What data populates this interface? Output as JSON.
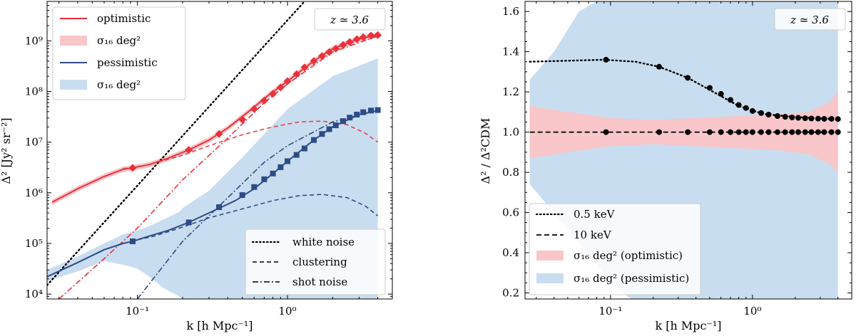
{
  "chart_data": [
    {
      "type": "line",
      "panel": "left",
      "xscale": "log",
      "yscale": "log",
      "xlabel": "k [h Mpc⁻¹]",
      "ylabel": "Δ² [Jy² sr⁻²]",
      "xlim": [
        0.025,
        5.0
      ],
      "ylim": [
        8000,
        6000000000
      ],
      "x_ticks": [
        {
          "v": 0.1,
          "label": "10⁻¹"
        },
        {
          "v": 1.0,
          "label": "10⁰"
        }
      ],
      "y_ticks": [
        {
          "v": 10000,
          "label": "10⁴"
        },
        {
          "v": 100000,
          "label": "10⁵"
        },
        {
          "v": 1000000,
          "label": "10⁶"
        },
        {
          "v": 10000000,
          "label": "10⁷"
        },
        {
          "v": 100000000,
          "label": "10⁸"
        },
        {
          "v": 1000000000,
          "label": "10⁹"
        }
      ],
      "annotation": "z ≃ 3.6",
      "legend_top_left": [
        {
          "label": "optimistic",
          "kind": "line",
          "color": "#e8323c"
        },
        {
          "label": "σ₁₆ deg²",
          "kind": "band",
          "color": "#f9c6c9"
        },
        {
          "label": "pessimistic",
          "kind": "line",
          "color": "#2c4c86"
        },
        {
          "label": "σ₁₆ deg²",
          "kind": "band",
          "color": "#c9ddf0"
        }
      ],
      "legend_bottom_right": [
        {
          "label": "white noise",
          "style": "dotted"
        },
        {
          "label": "clustering",
          "style": "dashed"
        },
        {
          "label": "shot noise",
          "style": "dashdot"
        }
      ],
      "colors": {
        "optimistic": "#e8323c",
        "pessimistic": "#2c4c86",
        "optimistic_band": "#f9c6c9",
        "pessimistic_band": "#c9ddf0",
        "white_noise": "#000000"
      },
      "series": [
        {
          "name": "white noise",
          "style": "dotted",
          "x": [
            0.025,
            1.3
          ],
          "y": [
            15000,
            6000000000
          ]
        },
        {
          "name": "optimistic",
          "style": "solid",
          "marker": "diamond",
          "x": [
            0.027,
            0.04,
            0.06,
            0.08,
            0.093,
            0.12,
            0.16,
            0.22,
            0.3,
            0.4,
            0.55,
            0.75,
            1.0,
            1.5,
            2.0,
            3.0,
            4.0
          ],
          "y": [
            650000,
            1200000,
            2100000,
            2900000,
            3100000,
            3600000,
            4800000,
            7000000,
            11000000,
            19000000,
            40000000,
            85000000,
            160000000,
            400000000,
            700000000,
            1100000000,
            1300000000
          ],
          "marker_x": [
            0.093,
            0.22,
            0.35,
            0.5,
            0.6,
            0.7,
            0.8,
            0.9,
            1.0,
            1.15,
            1.3,
            1.5,
            1.7,
            1.9,
            2.1,
            2.35,
            2.6,
            2.9,
            3.2,
            3.6,
            4.0
          ],
          "marker_y": [
            3100000,
            7000000,
            14500000,
            28000000,
            45000000,
            66000000,
            90000000,
            120000000,
            160000000,
            220000000,
            300000000,
            400000000,
            500000000,
            600000000,
            700000000,
            830000000,
            950000000,
            1080000000,
            1180000000,
            1270000000,
            1300000000
          ]
        },
        {
          "name": "optimistic clustering",
          "style": "dashed",
          "x": [
            0.08,
            0.12,
            0.2,
            0.3,
            0.5,
            0.8,
            1.2,
            1.7,
            2.5,
            3.3,
            4.0
          ],
          "y": [
            3000000,
            3600000,
            5500000,
            8500000,
            14000000,
            20000000,
            25000000,
            26000000,
            22000000,
            15000000,
            10000000
          ]
        },
        {
          "name": "optimistic shot noise",
          "style": "dashdot",
          "x": [
            0.03,
            0.06,
            0.1,
            0.2,
            0.4,
            0.7,
            1.0,
            2.0,
            4.0
          ],
          "y": [
            8000,
            50000,
            200000,
            1800000,
            12000000,
            60000000,
            140000000,
            600000000,
            1250000000
          ]
        },
        {
          "name": "pessimistic",
          "style": "solid",
          "marker": "square",
          "x": [
            0.025,
            0.04,
            0.06,
            0.08,
            0.093,
            0.12,
            0.16,
            0.22,
            0.3,
            0.45,
            0.6,
            0.8,
            1.0,
            1.5,
            2.0,
            3.0,
            4.0
          ],
          "y": [
            22000,
            42000,
            75000,
            100000,
            110000,
            140000,
            180000,
            260000,
            400000,
            700000,
            1200000,
            2400000,
            4200000,
            11000000,
            20000000,
            35000000,
            42000000
          ],
          "marker_x": [
            0.093,
            0.22,
            0.35,
            0.5,
            0.6,
            0.7,
            0.8,
            0.9,
            1.0,
            1.15,
            1.3,
            1.5,
            1.7,
            1.9,
            2.1,
            2.35,
            2.6,
            2.9,
            3.2,
            3.6,
            4.0
          ],
          "marker_y": [
            110000,
            260000,
            520000,
            900000,
            1300000,
            1850000,
            2400000,
            3200000,
            4200000,
            5600000,
            7500000,
            11000000,
            14500000,
            18000000,
            21500000,
            26000000,
            30500000,
            35000000,
            39000000,
            42000000,
            43000000
          ]
        },
        {
          "name": "pessimistic clustering",
          "style": "dashed",
          "x": [
            0.09,
            0.13,
            0.2,
            0.3,
            0.5,
            0.8,
            1.2,
            1.7,
            2.5,
            3.3,
            4.0
          ],
          "y": [
            110000,
            140000,
            210000,
            320000,
            480000,
            700000,
            880000,
            930000,
            800000,
            550000,
            350000
          ]
        },
        {
          "name": "pessimistic shot noise",
          "style": "dashdot",
          "x": [
            0.1,
            0.2,
            0.4,
            0.7,
            1.0,
            2.0,
            4.0
          ],
          "y": [
            8000,
            110000,
            800000,
            4000000,
            8500000,
            25000000,
            42000000
          ]
        }
      ],
      "bands": [
        {
          "name": "optimistic σ",
          "lower_factor": 0.88,
          "upper_factor": 1.13
        },
        {
          "name": "pessimistic σ",
          "x": [
            0.025,
            0.04,
            0.06,
            0.08,
            0.1,
            0.12,
            0.15,
            0.19,
            0.2,
            0.3,
            0.5,
            1.0,
            2.0,
            4.0
          ],
          "upper": [
            30000,
            55000,
            100000,
            150000,
            180000,
            220000,
            300000,
            420000,
            500000,
            1100000,
            5000000,
            45000000,
            200000000,
            450000000
          ],
          "lower": [
            18000,
            28000,
            45000,
            38000,
            32000,
            22000,
            13000,
            9000,
            8000,
            8000,
            8000,
            8000,
            8000,
            8000
          ]
        }
      ]
    },
    {
      "type": "line",
      "panel": "right",
      "xscale": "log",
      "xlabel": "k [h Mpc⁻¹]",
      "ylabel": "Δ² / Δ²CDM",
      "xlim": [
        0.025,
        5.0
      ],
      "ylim": [
        0.17,
        1.65
      ],
      "x_ticks": [
        {
          "v": 0.1,
          "label": "10⁻¹"
        },
        {
          "v": 1.0,
          "label": "10⁰"
        }
      ],
      "y_ticks": [
        {
          "v": 0.2,
          "label": "0.2"
        },
        {
          "v": 0.4,
          "label": "0.4"
        },
        {
          "v": 0.6,
          "label": "0.6"
        },
        {
          "v": 0.8,
          "label": "0.8"
        },
        {
          "v": 1.0,
          "label": "1.0"
        },
        {
          "v": 1.2,
          "label": "1.2"
        },
        {
          "v": 1.4,
          "label": "1.4"
        },
        {
          "v": 1.6,
          "label": "1.6"
        }
      ],
      "annotation": "z ≃ 3.6",
      "legend": [
        {
          "label": "0.5 keV",
          "style": "dotted"
        },
        {
          "label": "10 keV",
          "style": "dashed"
        },
        {
          "label": "σ₁₆ deg² (optimistic)",
          "kind": "band",
          "color": "#f9c6c9"
        },
        {
          "label": "σ₁₆ deg² (pessimistic)",
          "kind": "band",
          "color": "#c9ddf0"
        }
      ],
      "series": [
        {
          "name": "0.5 keV",
          "style": "dotted",
          "x": [
            0.027,
            0.05,
            0.09,
            0.15,
            0.22,
            0.35,
            0.5,
            0.8,
            1.2,
            2.0,
            3.0,
            4.0
          ],
          "y": [
            1.35,
            1.355,
            1.36,
            1.35,
            1.325,
            1.27,
            1.21,
            1.13,
            1.09,
            1.075,
            1.068,
            1.065
          ],
          "marker_x": [
            0.093,
            0.22,
            0.35,
            0.5,
            0.6,
            0.7,
            0.8,
            0.9,
            1.0,
            1.15,
            1.3,
            1.5,
            1.7,
            1.9,
            2.1,
            2.35,
            2.6,
            2.9,
            3.2,
            3.6,
            4.0
          ],
          "marker_y": [
            1.36,
            1.325,
            1.27,
            1.22,
            1.19,
            1.16,
            1.135,
            1.12,
            1.105,
            1.095,
            1.087,
            1.08,
            1.076,
            1.073,
            1.071,
            1.069,
            1.068,
            1.067,
            1.066,
            1.066,
            1.065
          ]
        },
        {
          "name": "10 keV",
          "style": "dashed",
          "x": [
            0.027,
            4.0
          ],
          "y": [
            1.0,
            1.0
          ],
          "marker_x": [
            0.093,
            0.22,
            0.35,
            0.5,
            0.6,
            0.7,
            0.8,
            0.9,
            1.0,
            1.15,
            1.3,
            1.5,
            1.7,
            1.9,
            2.1,
            2.35,
            2.6,
            2.9,
            3.2,
            3.6,
            4.0
          ],
          "marker_y": [
            1.0,
            1.0,
            1.0,
            1.0,
            1.0,
            1.0,
            1.0,
            1.0,
            1.0,
            1.0,
            1.0,
            1.0,
            1.0,
            1.0,
            1.0,
            1.0,
            1.0,
            1.0,
            1.0,
            1.0,
            1.0
          ]
        }
      ],
      "bands": [
        {
          "name": "optimistic σ",
          "x": [
            0.027,
            0.05,
            0.1,
            0.2,
            0.4,
            0.8,
            1.5,
            2.5,
            3.5,
            4.0
          ],
          "upper": [
            1.13,
            1.1,
            1.07,
            1.06,
            1.07,
            1.08,
            1.09,
            1.1,
            1.15,
            1.2
          ],
          "lower": [
            0.87,
            0.9,
            0.93,
            0.94,
            0.93,
            0.92,
            0.91,
            0.89,
            0.84,
            0.8
          ]
        },
        {
          "name": "pessimistic σ",
          "x": [
            0.027,
            0.04,
            0.06,
            0.08,
            0.1,
            0.14,
            0.19,
            0.2,
            1.0,
            4.0
          ],
          "upper": [
            1.26,
            1.4,
            1.6,
            1.65,
            1.65,
            1.65,
            1.65,
            1.65,
            1.65,
            1.65
          ],
          "lower": [
            0.74,
            0.6,
            0.45,
            0.34,
            0.25,
            0.17,
            0.17,
            0.17,
            0.17,
            0.17
          ]
        }
      ]
    }
  ]
}
